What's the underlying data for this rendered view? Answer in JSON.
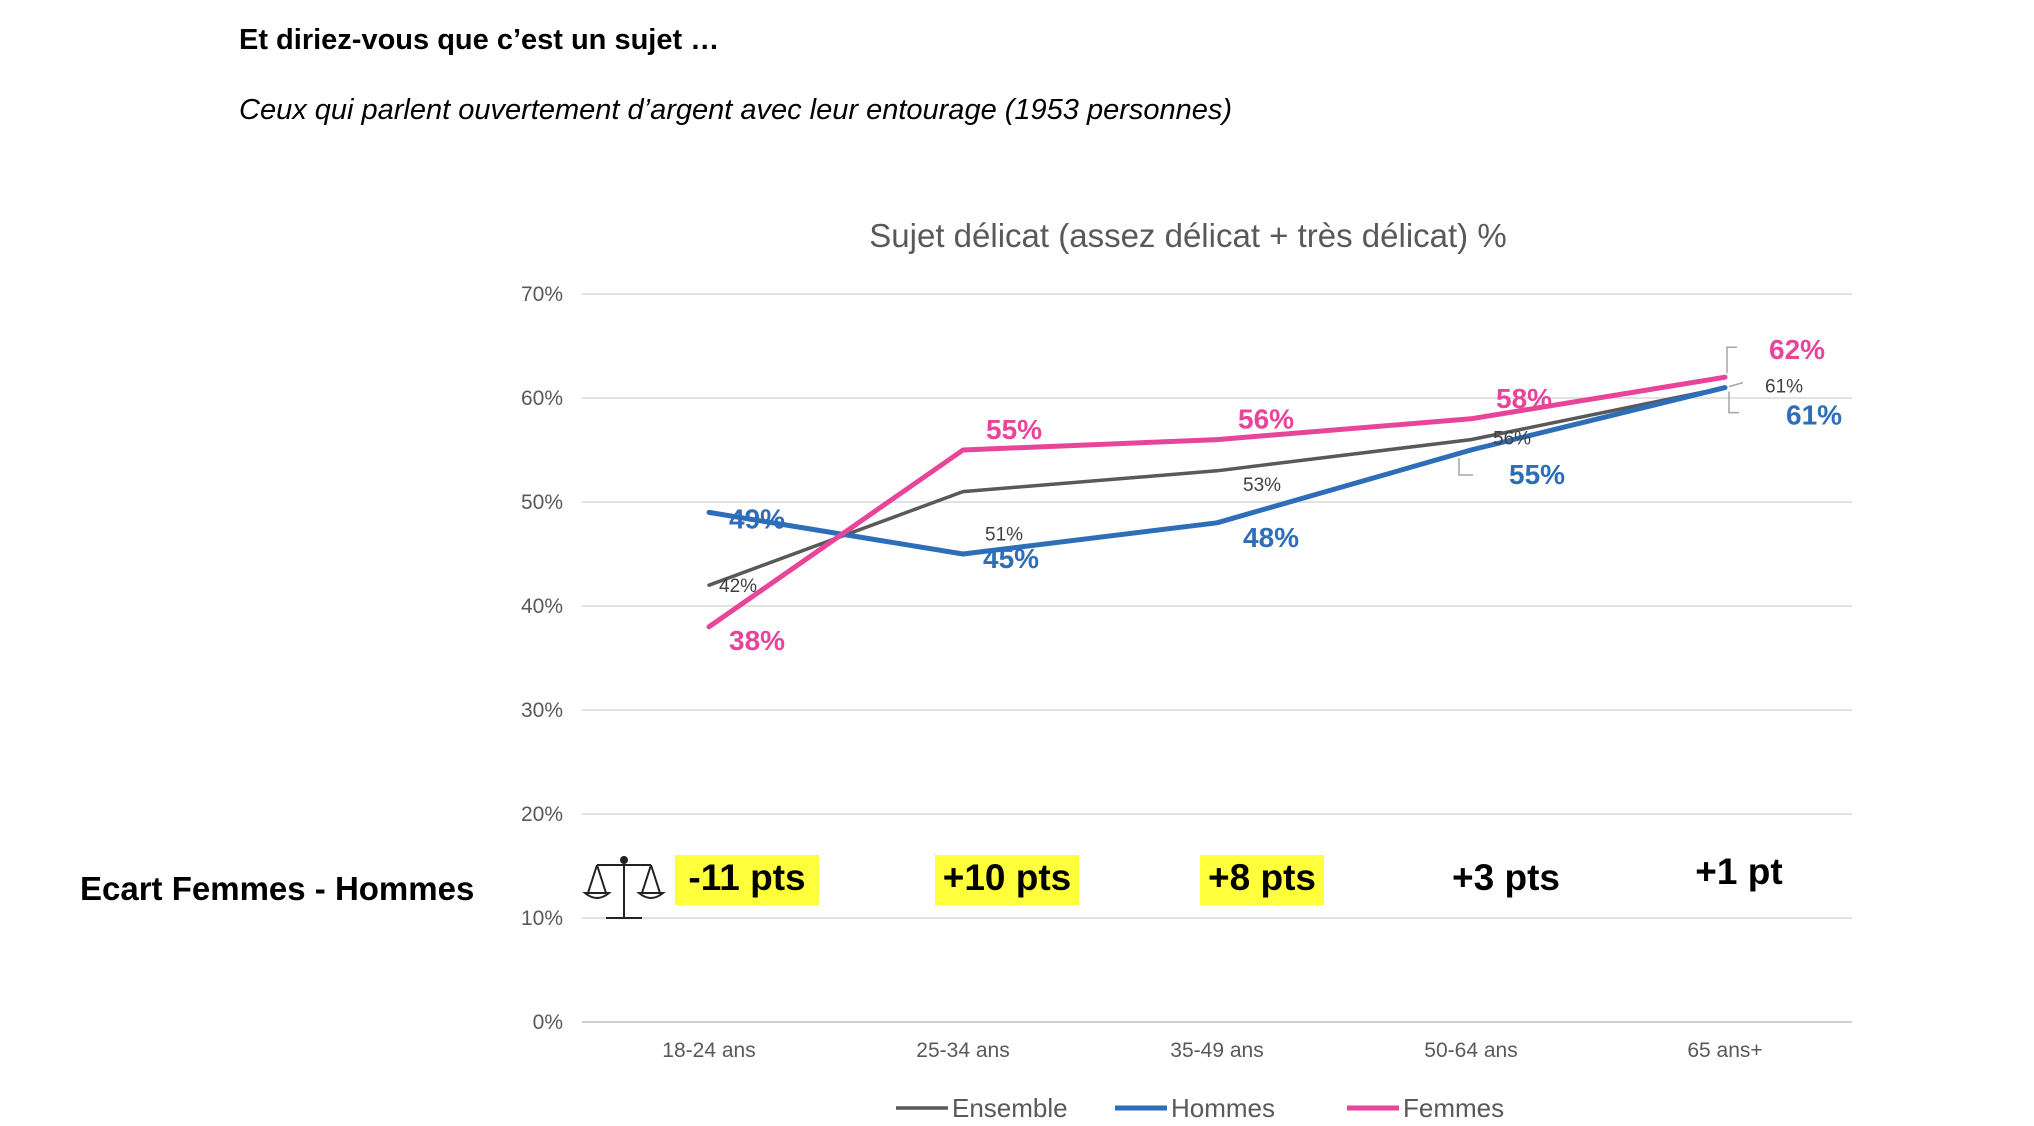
{
  "heading": "Et diriez-vous que c’est un sujet …",
  "subtitle": "Ceux qui parlent ouvertement d’argent avec leur entourage (1953 personnes)",
  "chart_data": {
    "type": "line",
    "title": "Sujet délicat (assez délicat + très délicat) %",
    "categories": [
      "18-24 ans",
      "25-34 ans",
      "35-49 ans",
      "50-64 ans",
      "65 ans+"
    ],
    "ylim": [
      0,
      70
    ],
    "yticks": [
      0,
      10,
      20,
      30,
      40,
      50,
      60,
      70
    ],
    "ytick_labels": [
      "0%",
      "10%",
      "20%",
      "30%",
      "40%",
      "50%",
      "60%",
      "70%"
    ],
    "grid": true,
    "legend_position": "bottom",
    "series": [
      {
        "name": "Ensemble",
        "color": "#595959",
        "values": [
          42,
          51,
          53,
          56,
          61
        ],
        "labels": [
          "42%",
          "51%",
          "53%",
          "56%",
          "61%"
        ]
      },
      {
        "name": "Hommes",
        "color": "#2E6DB8",
        "values": [
          49,
          45,
          48,
          55,
          61
        ],
        "labels": [
          "49%",
          "45%",
          "48%",
          "55%",
          "61%"
        ]
      },
      {
        "name": "Femmes",
        "color": "#E8449A",
        "values": [
          38,
          55,
          56,
          58,
          62
        ],
        "labels": [
          "38%",
          "55%",
          "56%",
          "58%",
          "62%"
        ]
      }
    ],
    "gap_row": {
      "title": "Ecart Femmes - Hommes",
      "icon": "scale-icon",
      "values": [
        "-11 pts",
        "+10 pts",
        "+8 pts",
        "+3 pts",
        "+1 pt"
      ],
      "highlighted": [
        true,
        true,
        true,
        false,
        false
      ],
      "highlight_color": "#FFFF3C"
    }
  }
}
